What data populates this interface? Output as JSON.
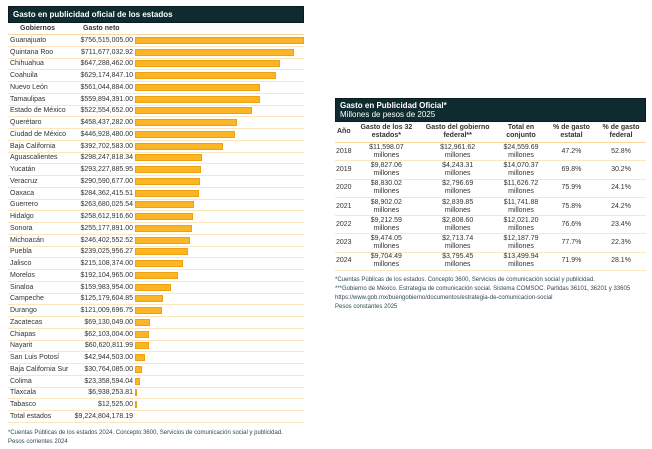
{
  "left": {
    "title": "Gasto en publicidad oficial de los estados",
    "col_states": "Gobiernos",
    "col_amount": "Gasto neto",
    "total_label": "Total estados",
    "total_value": "$9,224,804,178.19",
    "footnote1": "*Cuentas Públicas de los estados 2024. Concepto 3600, Servicios de comunicación social y publicidad.",
    "footnote2": "Pesos corrientes 2024",
    "bar_color": "#fbb526"
  },
  "chart_data": {
    "type": "bar",
    "orientation": "horizontal",
    "title": "Gasto en publicidad oficial de los estados",
    "xlabel": "Gasto neto",
    "ylabel": "Gobiernos",
    "categories": [
      "Guanajuato",
      "Quintana Roo",
      "Chihuahua",
      "Coahuila",
      "Nuevo León",
      "Tamaulipas",
      "Estado de México",
      "Querétaro",
      "Ciudad de México",
      "Baja California",
      "Aguascalientes",
      "Yucatán",
      "Veracruz",
      "Oaxaca",
      "Guerrero",
      "Hidalgo",
      "Sonora",
      "Michoacán",
      "Puebla",
      "Jalisco",
      "Morelos",
      "Sinaloa",
      "Campeche",
      "Durango",
      "Zacatecas",
      "Chiapas",
      "Nayarit",
      "San Luis Potosí",
      "Baja California Sur",
      "Colima",
      "Tlaxcala",
      "Tabasco"
    ],
    "labels": [
      "$756,515,005.00",
      "$711,677,032.92",
      "$647,288,462.00",
      "$629,174,847.10",
      "$561,044,884.00",
      "$559,894,391.00",
      "$522,554,652.00",
      "$458,437,282.00",
      "$446,928,480.00",
      "$392,702,583.00",
      "$298,247,818.34",
      "$293,227,885.95",
      "$290,590,677.00",
      "$284,362,415.51",
      "$263,680,025.54",
      "$258,612,916.60",
      "$255,177,891.00",
      "$246,402,552.52",
      "$239,025,956.27",
      "$215,108,374.00",
      "$192,104,965.00",
      "$159,983,954.00",
      "$125,179,604.85",
      "$121,009,696.75",
      "$69,130,049.00",
      "$62,103,004.00",
      "$60,620,811.99",
      "$42,944,503.00",
      "$30,764,085.00",
      "$23,358,594.04",
      "$6,938,253.81",
      "$12,525.00"
    ],
    "values": [
      756515005,
      711677032.92,
      647288462,
      629174847.1,
      561044884,
      559894391,
      522554652,
      458437282,
      446928480,
      392702583,
      298247818.34,
      293227885.95,
      290590677,
      284362415.51,
      263680025.54,
      258612916.6,
      255177891,
      246402552.52,
      239025956.27,
      215108374,
      192104965,
      159983954,
      125179604.85,
      121009696.75,
      69130049,
      62103004,
      60620811.99,
      42944503,
      30764085,
      23358594.04,
      6938253.81,
      12525
    ],
    "xlim": [
      0,
      756515005
    ]
  },
  "right": {
    "title": "Gasto en Publicidad Oficial*",
    "subtitle": "Millones de pesos de 2025",
    "headers": [
      "Año",
      "Gasto de los 32 estados*",
      "Gasto del gobierno federal**",
      "Total en conjunto",
      "% de gasto estatal",
      "% de gasto federal"
    ],
    "unit": "millones",
    "rows": [
      [
        "2018",
        "$11,598.07",
        "$12,961.62",
        "$24,559.69",
        "47.2%",
        "52.8%"
      ],
      [
        "2019",
        "$9,827.06",
        "$4,243.31",
        "$14,070.37",
        "69.8%",
        "30.2%"
      ],
      [
        "2020",
        "$8,830.02",
        "$2,796.69",
        "$11,626.72",
        "75.9%",
        "24.1%"
      ],
      [
        "2021",
        "$8,902.02",
        "$2,839.85",
        "$11,741.88",
        "75.8%",
        "24.2%"
      ],
      [
        "2022",
        "$9,212.59",
        "$2,808.60",
        "$12,021.20",
        "76.6%",
        "23.4%"
      ],
      [
        "2023",
        "$9,474.05",
        "$2,713.74",
        "$12,187.79",
        "77.7%",
        "22.3%"
      ],
      [
        "2024",
        "$9,704.49",
        "$3,795.45",
        "$13,499.94",
        "71.9%",
        "28.1%"
      ]
    ],
    "footnotes": [
      "*Cuentas Públicas de los estados. Concepto 3600, Servicios de comunicación social y publicidad.",
      "***Gobierno de México. Estrategia de comunicación social. Sistema COMSOC. Partidas 36101, 36201 y 33605 https://www.gob.mx/buengobierno/documentos/estrategia-de-comunicacion-social",
      "Pesos constantes 2025"
    ]
  }
}
